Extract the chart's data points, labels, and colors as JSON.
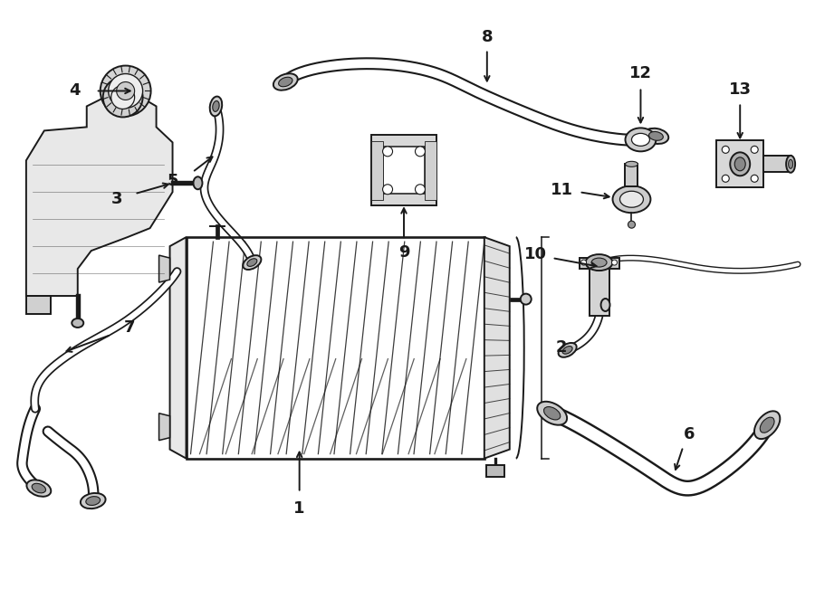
{
  "bg_color": "#ffffff",
  "line_color": "#1a1a1a",
  "fig_width": 9.0,
  "fig_height": 6.62,
  "dpi": 100,
  "lw": 1.4
}
